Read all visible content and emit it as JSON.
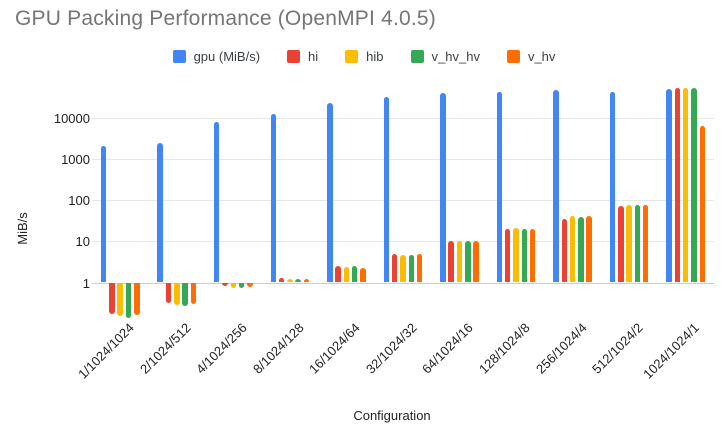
{
  "title": "GPU Packing Performance (OpenMPI 4.0.5)",
  "chart_data": {
    "type": "bar",
    "title": "GPU Packing Performance (OpenMPI 4.0.5)",
    "xlabel": "Configuration",
    "ylabel": "MiB/s",
    "y_scale": "log",
    "y_ticks": [
      1,
      10,
      100,
      1000,
      10000
    ],
    "ylim": [
      0.1,
      100000
    ],
    "grid": true,
    "legend_position": "top",
    "title_color": "#757575",
    "categories": [
      "1/1024/1024",
      "2/1024/512",
      "4/1024/256",
      "8/1024/128",
      "16/1024/64",
      "32/1024/32",
      "64/1024/16",
      "128/1024/8",
      "256/1024/4",
      "512/1024/2",
      "1024/1024/1"
    ],
    "series": [
      {
        "name": "gpu (MiB/s)",
        "color": "#4285F4",
        "values": [
          2100,
          2500,
          8000,
          12500,
          23000,
          33000,
          40000,
          42000,
          48000,
          44000,
          52000
        ]
      },
      {
        "name": "hi",
        "color": "#EA4335",
        "values": [
          0.17,
          0.31,
          0.8,
          1.3,
          2.5,
          5.0,
          10,
          20,
          36,
          72,
          55000
        ]
      },
      {
        "name": "hib",
        "color": "#FBBC04",
        "values": [
          0.15,
          0.28,
          0.75,
          1.25,
          2.4,
          4.7,
          10.5,
          21,
          41,
          79,
          53000
        ]
      },
      {
        "name": "v_hv_hv",
        "color": "#34A853",
        "values": [
          0.14,
          0.27,
          0.72,
          1.2,
          2.5,
          4.7,
          10,
          19.5,
          39,
          76,
          55000
        ]
      },
      {
        "name": "v_hv",
        "color": "#FF6D01",
        "values": [
          0.16,
          0.3,
          0.78,
          1.25,
          2.3,
          5.0,
          10.5,
          20.5,
          41,
          79,
          6500
        ]
      }
    ]
  }
}
